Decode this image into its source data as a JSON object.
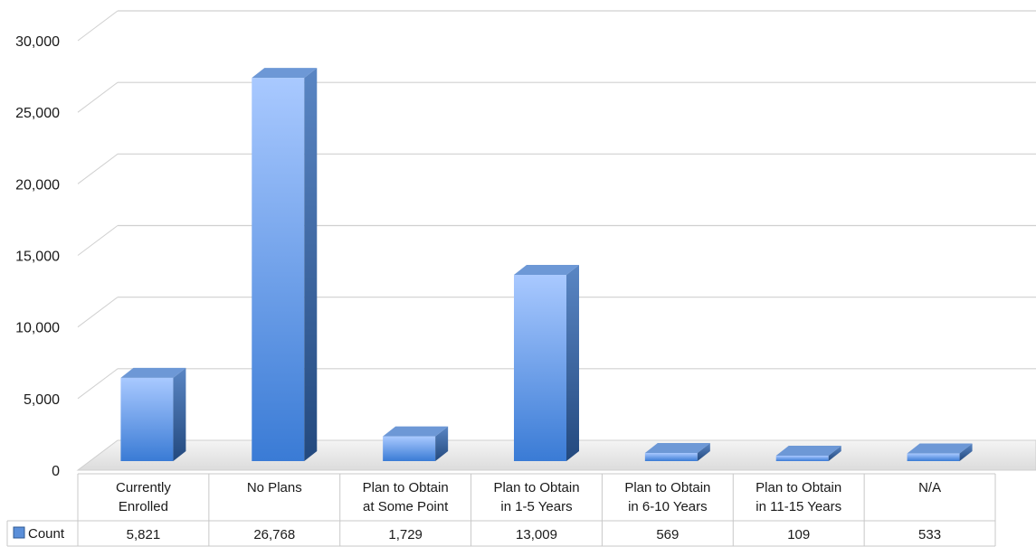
{
  "chart_data": {
    "type": "bar",
    "style": "3d-column-with-data-table",
    "title": "",
    "xlabel": "",
    "ylabel": "",
    "ylim": [
      0,
      30000
    ],
    "y_ticks": [
      0,
      5000,
      10000,
      15000,
      20000,
      25000,
      30000
    ],
    "y_tick_labels": [
      "0",
      "5,000",
      "10,000",
      "15,000",
      "20,000",
      "25,000",
      "30,000"
    ],
    "grid": true,
    "categories": [
      [
        "Currently",
        "Enrolled"
      ],
      [
        "No Plans"
      ],
      [
        "Plan to Obtain",
        "at Some Point"
      ],
      [
        "Plan to Obtain",
        "in 1-5 Years"
      ],
      [
        "Plan to Obtain",
        "in 6-10 Years"
      ],
      [
        "Plan to Obtain",
        "in 11-15 Years"
      ],
      [
        "N/A"
      ]
    ],
    "series": [
      {
        "name": "Count",
        "values": [
          5821,
          26768,
          1729,
          13009,
          569,
          109,
          533
        ],
        "value_labels": [
          "5,821",
          "26,768",
          "1,729",
          "13,009",
          "569",
          "109",
          "533"
        ],
        "color": "#5b8fd9"
      }
    ],
    "legend": "data-table-left",
    "colors": {
      "bar_front_light": "#a9c9ff",
      "bar_front_dark": "#3a7bd5",
      "bar_side": "#2f5a93",
      "bar_top": "#6d98d6",
      "grid": "#d0d0d0",
      "floor": "#e6e6e6"
    }
  }
}
